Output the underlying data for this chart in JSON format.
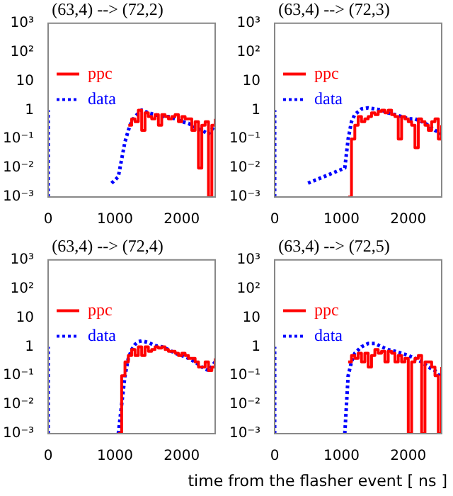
{
  "chart_data": [
    {
      "type": "line",
      "title": "(63,4) --> (72,2)",
      "log": "y",
      "legend": "top",
      "xlim": [
        0,
        2500
      ],
      "xticks": [
        0,
        1000,
        2000
      ],
      "ylim": [
        0.001,
        1000
      ],
      "yticks": [
        {
          "value": 0.001,
          "label": "10⁻³"
        },
        {
          "value": 0.01,
          "label": "10⁻²"
        },
        {
          "value": 0.1,
          "label": "10⁻¹"
        },
        {
          "value": 1,
          "label": "1"
        },
        {
          "value": 10,
          "label": "10"
        },
        {
          "value": 100,
          "label": "10²"
        },
        {
          "value": 1000,
          "label": "10³"
        }
      ],
      "series": [
        {
          "name": "ppc",
          "type": "step",
          "color": "#ff0000",
          "line_style": "solid",
          "x": [
            1200,
            1250,
            1300,
            1350,
            1400,
            1450,
            1500,
            1550,
            1600,
            1650,
            1700,
            1750,
            1800,
            1850,
            1900,
            1950,
            2000,
            2050,
            2100,
            2150,
            2200,
            2250,
            2300,
            2350,
            2400,
            2450,
            2500
          ],
          "values": [
            0.3,
            0.5,
            0.4,
            1,
            0.2,
            0.8,
            0.6,
            0.5,
            0.7,
            0.3,
            0.7,
            0.6,
            0.5,
            0.6,
            0.7,
            0.4,
            0.6,
            0.5,
            0.5,
            0.2,
            0.4,
            0.01,
            0.3,
            0.4,
            0.001,
            0.3,
            0.5
          ]
        },
        {
          "name": "data",
          "type": "line",
          "color": "#0000ff",
          "line_style": "dotted",
          "x": [
            0,
            0,
            50,
            950,
            1050,
            1100,
            1150,
            1200,
            1250,
            1300,
            1400,
            1500,
            1600,
            1700,
            1800,
            1900,
            2000,
            2100,
            2200,
            2300,
            2400,
            2500
          ],
          "values": [
            0.001,
            1,
            null,
            0.003,
            0.005,
            0.02,
            0.08,
            0.2,
            0.4,
            0.6,
            1,
            0.8,
            0.7,
            0.6,
            0.6,
            0.5,
            0.4,
            0.35,
            0.25,
            0.2,
            0.15,
            0.3
          ]
        }
      ]
    },
    {
      "type": "line",
      "title": "(63,4) --> (72,3)",
      "log": "y",
      "legend": "top",
      "xlim": [
        0,
        2500
      ],
      "xticks": [
        0,
        1000,
        2000
      ],
      "ylim": [
        0.001,
        1000
      ],
      "yticks": [
        {
          "value": 0.001,
          "label": "10⁻³"
        },
        {
          "value": 0.01,
          "label": "10⁻²"
        },
        {
          "value": 0.1,
          "label": "10⁻¹"
        },
        {
          "value": 1,
          "label": "1"
        },
        {
          "value": 10,
          "label": "10"
        },
        {
          "value": 100,
          "label": "10²"
        },
        {
          "value": 1000,
          "label": "10³"
        }
      ],
      "series": [
        {
          "name": "ppc",
          "type": "step",
          "color": "#ff0000",
          "line_style": "solid",
          "x": [
            1100,
            1150,
            1200,
            1250,
            1300,
            1350,
            1400,
            1450,
            1500,
            1550,
            1600,
            1650,
            1700,
            1750,
            1800,
            1850,
            1900,
            1950,
            2000,
            2050,
            2100,
            2150,
            2200,
            2250,
            2300,
            2350,
            2400,
            2450,
            2500
          ],
          "values": [
            0.001,
            0.1,
            0.3,
            0.6,
            0.4,
            0.5,
            0.6,
            0.8,
            0.7,
            0.9,
            1,
            0.8,
            1,
            0.7,
            0.6,
            0.1,
            0.6,
            0.5,
            0.4,
            0.3,
            0.05,
            0.5,
            0.4,
            0.3,
            0.2,
            0.4,
            0.5,
            0.1,
            0.3
          ]
        },
        {
          "name": "data",
          "type": "line",
          "color": "#0000ff",
          "line_style": "dotted",
          "x": [
            0,
            0,
            50,
            500,
            1050,
            1100,
            1150,
            1200,
            1300,
            1400,
            1500,
            1600,
            1700,
            1800,
            1900,
            2000,
            2100,
            2200,
            2300,
            2400,
            2500
          ],
          "values": [
            0.001,
            1,
            null,
            0.003,
            0.01,
            0.1,
            0.4,
            0.7,
            1.1,
            1.2,
            1.1,
            1,
            0.8,
            0.7,
            0.6,
            0.5,
            0.5,
            0.4,
            0.3,
            0.2,
            0.15
          ]
        }
      ]
    },
    {
      "type": "line",
      "title": "(63,4) --> (72,4)",
      "log": "y",
      "legend": "top",
      "xlim": [
        0,
        2500
      ],
      "xticks": [
        0,
        1000,
        2000
      ],
      "ylim": [
        0.001,
        1000
      ],
      "yticks": [
        {
          "value": 0.001,
          "label": "10⁻³"
        },
        {
          "value": 0.01,
          "label": "10⁻²"
        },
        {
          "value": 0.1,
          "label": "10⁻¹"
        },
        {
          "value": 1,
          "label": "1"
        },
        {
          "value": 10,
          "label": "10"
        },
        {
          "value": 100,
          "label": "10²"
        },
        {
          "value": 1000,
          "label": "10³"
        }
      ],
      "series": [
        {
          "name": "ppc",
          "type": "step",
          "color": "#ff0000",
          "line_style": "solid",
          "x": [
            1050,
            1100,
            1150,
            1200,
            1250,
            1300,
            1350,
            1400,
            1450,
            1500,
            1550,
            1600,
            1650,
            1700,
            1750,
            1800,
            1850,
            1900,
            1950,
            2000,
            2050,
            2100,
            2150,
            2200,
            2250,
            2300,
            2350,
            2400,
            2450,
            2500
          ],
          "values": [
            0.001,
            0.1,
            0.3,
            0.5,
            0.8,
            0.5,
            1,
            0.5,
            1,
            0.7,
            0.8,
            1,
            0.9,
            1,
            0.8,
            0.7,
            0.7,
            0.6,
            0.5,
            0.6,
            0.5,
            0.4,
            0.4,
            0.3,
            0.2,
            0.2,
            0.3,
            0.15,
            0.2,
            0.4
          ]
        },
        {
          "name": "data",
          "type": "line",
          "color": "#0000ff",
          "line_style": "dotted",
          "x": [
            0,
            0,
            50,
            1050,
            1100,
            1150,
            1200,
            1250,
            1300,
            1350,
            1400,
            1500,
            1600,
            1700,
            1800,
            1900,
            2000,
            2100,
            2200,
            2300,
            2400,
            2500
          ],
          "values": [
            0.001,
            1,
            null,
            0.001,
            0.01,
            0.1,
            0.4,
            0.8,
            1.2,
            1.5,
            1.6,
            1.4,
            1.1,
            1,
            0.8,
            0.6,
            0.5,
            0.4,
            0.3,
            0.2,
            0.15,
            0.3
          ]
        }
      ]
    },
    {
      "type": "line",
      "title": "(63,4) --> (72,5)",
      "xlabel": "time from the flasher event [ ns ]",
      "log": "y",
      "legend": "top",
      "xlim": [
        0,
        2500
      ],
      "xticks": [
        0,
        1000,
        2000
      ],
      "ylim": [
        0.001,
        1000
      ],
      "yticks": [
        {
          "value": 0.001,
          "label": "10⁻³"
        },
        {
          "value": 0.01,
          "label": "10⁻²"
        },
        {
          "value": 0.1,
          "label": "10⁻¹"
        },
        {
          "value": 1,
          "label": "1"
        },
        {
          "value": 10,
          "label": "10"
        },
        {
          "value": 100,
          "label": "10²"
        },
        {
          "value": 1000,
          "label": "10³"
        }
      ],
      "series": [
        {
          "name": "ppc",
          "type": "step",
          "color": "#ff0000",
          "line_style": "solid",
          "x": [
            1100,
            1150,
            1200,
            1250,
            1300,
            1350,
            1400,
            1450,
            1500,
            1550,
            1600,
            1650,
            1700,
            1750,
            1800,
            1850,
            1900,
            1950,
            2000,
            2050,
            2100,
            2150,
            2200,
            2250,
            2300,
            2350,
            2400,
            2450,
            2500
          ],
          "values": [
            0.3,
            0.5,
            0.4,
            0.6,
            0.3,
            0.6,
            0.2,
            0.5,
            0.8,
            0.6,
            0.7,
            0.3,
            0.7,
            0.6,
            0.3,
            0.5,
            0.3,
            0.4,
            0.001,
            0.3,
            0.4,
            0.5,
            0.001,
            0.3,
            0.3,
            0.2,
            0.1,
            0.001,
            0.2
          ]
        },
        {
          "name": "data",
          "type": "line",
          "color": "#0000ff",
          "line_style": "dotted",
          "x": [
            0,
            0,
            50,
            1050,
            1100,
            1150,
            1200,
            1300,
            1400,
            1500,
            1600,
            1700,
            1800,
            1900,
            2000,
            2100,
            2200,
            2300,
            2400,
            2500
          ],
          "values": [
            0.001,
            1,
            null,
            0.001,
            0.1,
            0.3,
            0.6,
            1,
            1.3,
            1.3,
            1,
            0.8,
            0.7,
            0.6,
            0.5,
            0.4,
            0.3,
            0.2,
            0.15,
            0.08
          ]
        }
      ]
    }
  ]
}
